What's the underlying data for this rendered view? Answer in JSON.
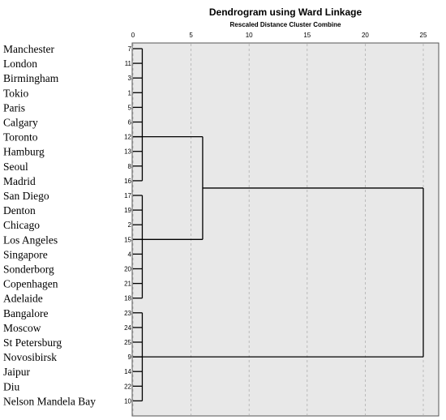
{
  "chart_data": {
    "type": "dendrogram",
    "title": "Dendrogram using Ward Linkage",
    "subtitle": "Rescaled Distance Cluster Combine",
    "x_ticks": [
      0,
      5,
      10,
      15,
      20,
      25
    ],
    "xlim": [
      0,
      25
    ],
    "grid": true,
    "leaves": [
      {
        "name": "Manchester",
        "case": "7"
      },
      {
        "name": "London",
        "case": "11"
      },
      {
        "name": "Birmingham",
        "case": "3"
      },
      {
        "name": "Tokio",
        "case": "1"
      },
      {
        "name": "Paris",
        "case": "5"
      },
      {
        "name": "Calgary",
        "case": "6"
      },
      {
        "name": "Toronto",
        "case": "12"
      },
      {
        "name": "Hamburg",
        "case": "13"
      },
      {
        "name": "Seoul",
        "case": "8"
      },
      {
        "name": "Madrid",
        "case": "16"
      },
      {
        "name": "San Diego",
        "case": "17"
      },
      {
        "name": "Denton",
        "case": "19"
      },
      {
        "name": "Chicago",
        "case": "2"
      },
      {
        "name": "Los Angeles",
        "case": "15"
      },
      {
        "name": "Singapore",
        "case": "4"
      },
      {
        "name": "Sonderborg",
        "case": "20"
      },
      {
        "name": "Copenhagen",
        "case": "21"
      },
      {
        "name": "Adelaide",
        "case": "18"
      },
      {
        "name": "Bangalore",
        "case": "23"
      },
      {
        "name": "Moscow",
        "case": "24"
      },
      {
        "name": "St Petersburg",
        "case": "25"
      },
      {
        "name": "Novosibirsk",
        "case": "9"
      },
      {
        "name": "Jaipur",
        "case": "14"
      },
      {
        "name": "Diu",
        "case": "22"
      },
      {
        "name": "Nelson Mandela Bay",
        "case": "10"
      }
    ],
    "clusters": [
      {
        "first": 0,
        "last": 9,
        "height": 0.8,
        "join_at": 6
      },
      {
        "first": 10,
        "last": 17,
        "height": 0.8,
        "join_at": 13
      },
      {
        "first": 18,
        "last": 24,
        "height": 0.8,
        "join_at": 21
      }
    ],
    "merges": [
      {
        "a_row": 6,
        "b_row": 13,
        "height": 6.0
      },
      {
        "a_row": 9.5,
        "b_row": 21,
        "height": 25.0
      }
    ]
  }
}
